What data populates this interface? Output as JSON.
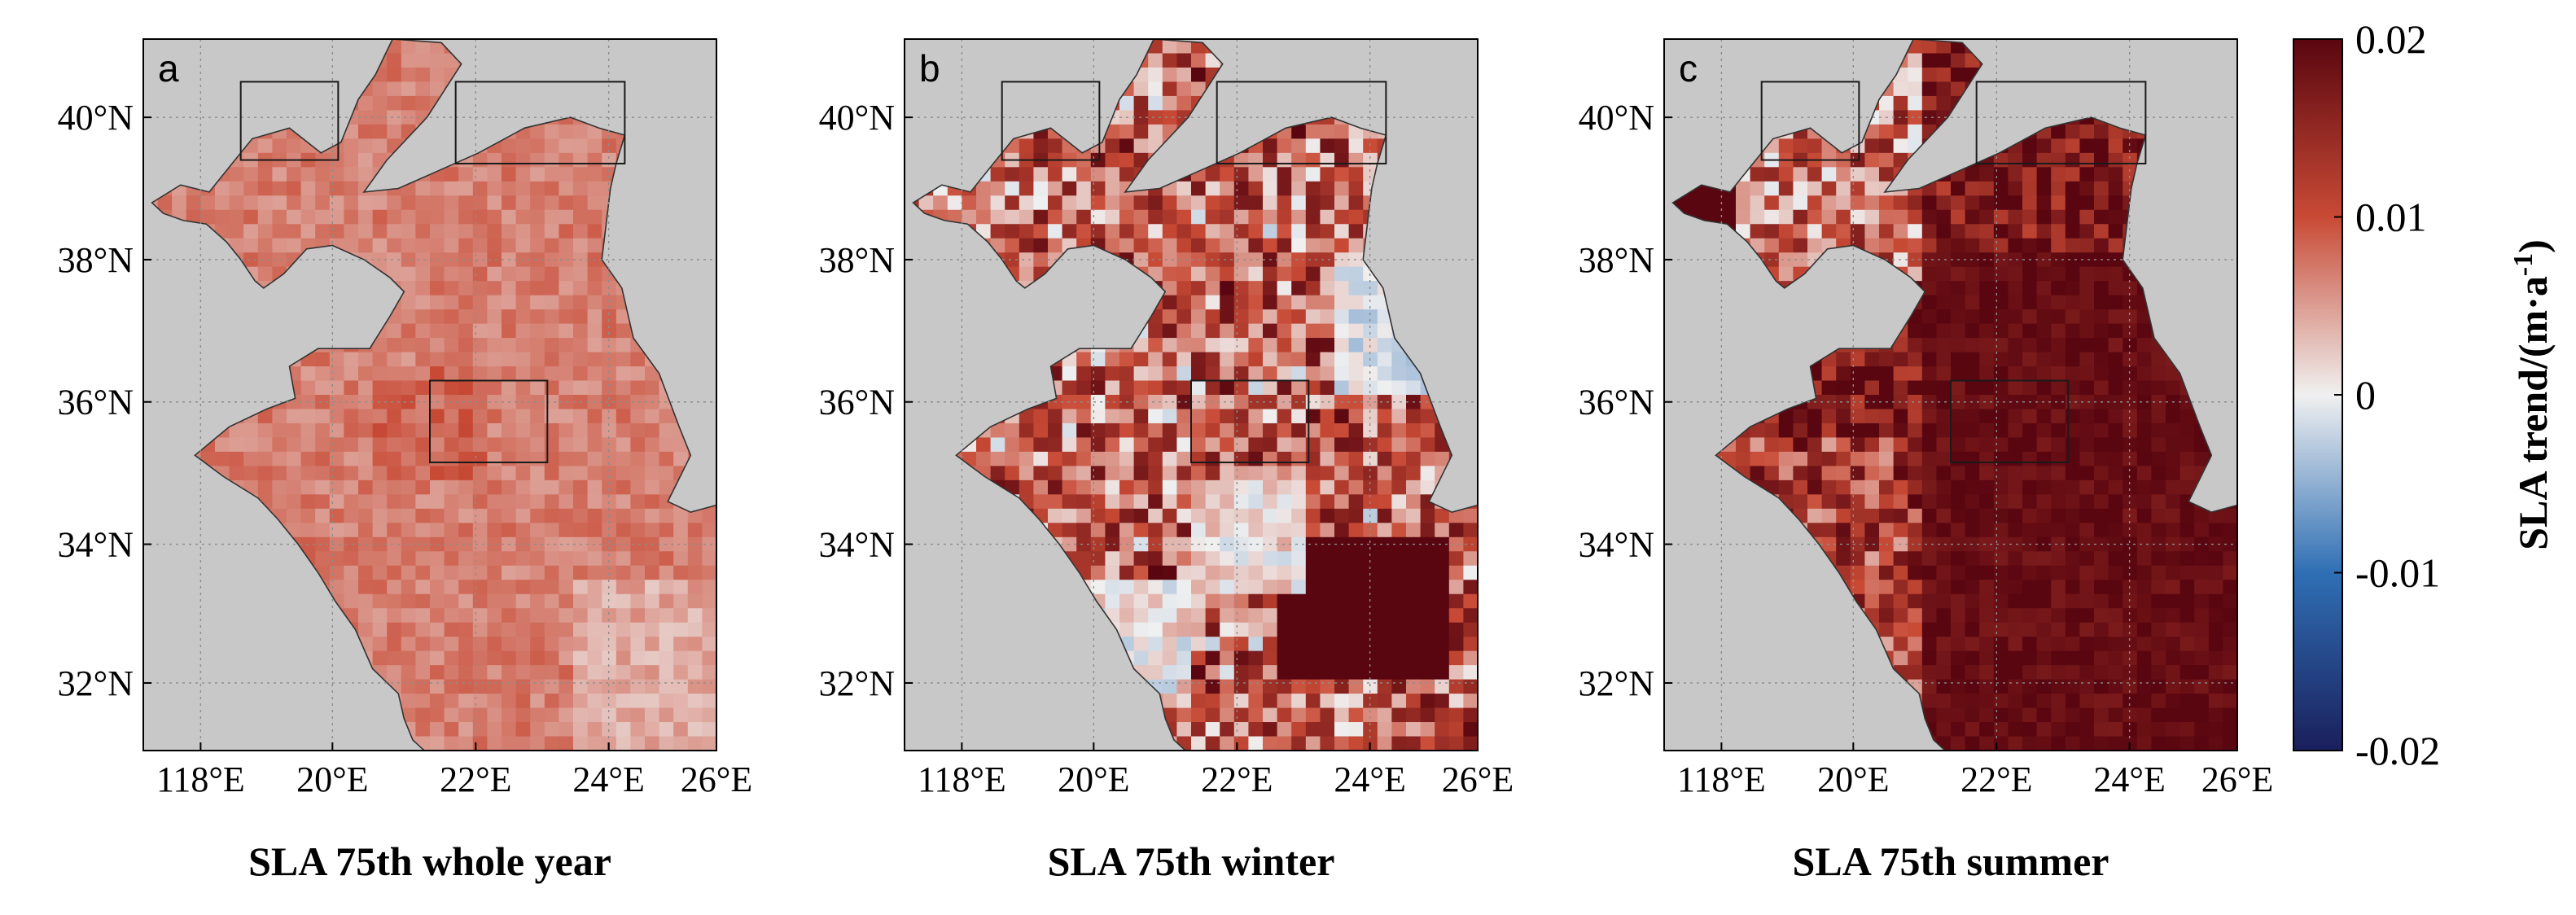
{
  "figure": {
    "panels": [
      {
        "letter": "a",
        "caption": "SLA 75th whole year",
        "pattern": "whole_year"
      },
      {
        "letter": "b",
        "caption": "SLA 75th winter",
        "pattern": "winter"
      },
      {
        "letter": "c",
        "caption": "SLA 75th summer",
        "pattern": "summer"
      }
    ],
    "lat_ticks": [
      "40°N",
      "38°N",
      "36°N",
      "34°N",
      "32°N"
    ],
    "lon_ticks": [
      "118°E",
      "20°E",
      "22°E",
      "24°E",
      "26°E"
    ],
    "colorbar": {
      "label": "SLA trend/(m·a-1)",
      "label_main": "SLA trend/(m·a",
      "label_sup": "-1",
      "label_close": ")",
      "ticks": [
        "0.02",
        "0.01",
        "0",
        "-0.01",
        "-0.02"
      ],
      "range": [
        -0.02,
        0.02
      ],
      "colors": [
        "#1a1f5c",
        "#2f6fb4",
        "#f0f0f0",
        "#c84a35",
        "#5a0610"
      ]
    },
    "colors": {
      "land": "#c8c8c8",
      "gridline": "#8c8c8c",
      "box": "#1a1a1a"
    }
  }
}
